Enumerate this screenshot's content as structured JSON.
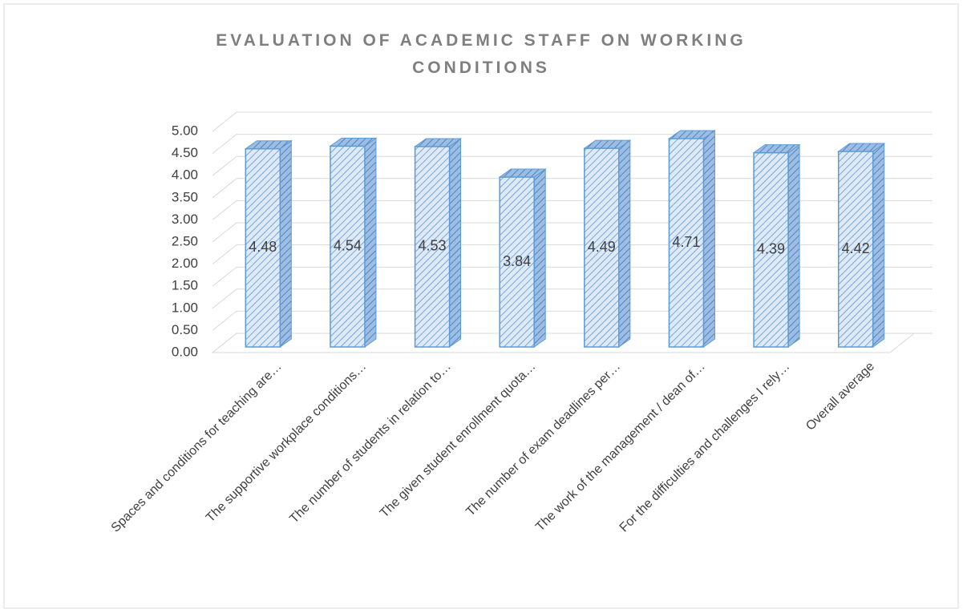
{
  "chart_data": {
    "type": "bar3d",
    "title": "EVALUATION OF ACADEMIC STAFF ON WORKING CONDITIONS",
    "categories": [
      "Spaces and conditions for teaching are…",
      "The supportive workplace conditions…",
      "The number of students in relation to…",
      "The given student enrollment quota…",
      "The number of exam deadlines per…",
      "The work of the management / dean of…",
      "For the difficulties and challenges I rely…",
      "Overall average"
    ],
    "values": [
      4.48,
      4.54,
      4.53,
      3.84,
      4.49,
      4.71,
      4.39,
      4.42
    ],
    "color": "#5b9bd5",
    "ylim": [
      0,
      5
    ],
    "yticks": [
      {
        "value": 0,
        "label": "0.00"
      },
      {
        "value": 0.5,
        "label": "0.50"
      },
      {
        "value": 1,
        "label": "1.00"
      },
      {
        "value": 1.5,
        "label": "1.50"
      },
      {
        "value": 2,
        "label": "2.00"
      },
      {
        "value": 2.5,
        "label": "2.50"
      },
      {
        "value": 3,
        "label": "3.00"
      },
      {
        "value": 3.5,
        "label": "3.50"
      },
      {
        "value": 4,
        "label": "4.00"
      },
      {
        "value": 4.5,
        "label": "4.50"
      },
      {
        "value": 5,
        "label": "5.00"
      }
    ],
    "grid": true
  }
}
